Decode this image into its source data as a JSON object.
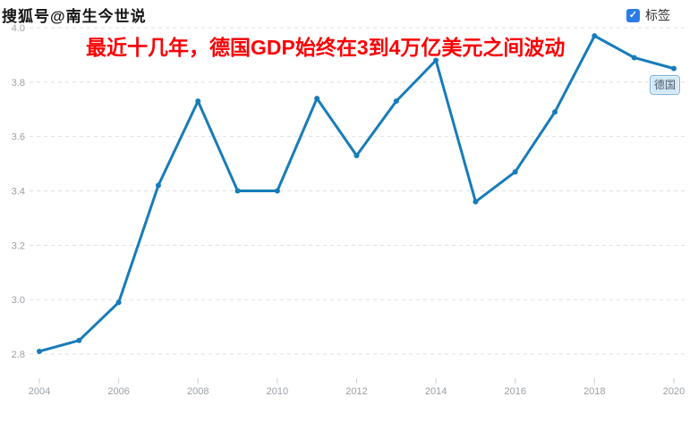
{
  "watermark": {
    "text": "搜狐号@南生今世说"
  },
  "header": {
    "title": "最近十几年，德国GDP始终在3到4万亿美元之间波动"
  },
  "controls": {
    "tag_checkbox": {
      "label": "标签",
      "checked": true
    }
  },
  "series_label": {
    "text": "德国"
  },
  "colors": {
    "title": "#fb0005",
    "line": "#177cb9",
    "grid": "#e0e0e0",
    "axis_text": "#9aa0a6",
    "tick": "#cfcfcf",
    "checkbox": "#2b7ce5",
    "badge_bg": "#d3e9f7",
    "badge_border": "#76b1d8",
    "badge_text": "#4d5a66",
    "watermark": "#151515"
  },
  "chart_data": {
    "type": "line",
    "title": "最近十几年，德国GDP始终在3到4万亿美元之间波动",
    "x": [
      2004,
      2005,
      2006,
      2007,
      2008,
      2009,
      2010,
      2011,
      2012,
      2013,
      2014,
      2015,
      2016,
      2017,
      2018,
      2019,
      2020
    ],
    "series": [
      {
        "name": "德国",
        "values": [
          2.81,
          2.85,
          2.99,
          3.42,
          3.73,
          3.4,
          3.4,
          3.74,
          3.53,
          3.73,
          3.88,
          3.36,
          3.47,
          3.69,
          3.97,
          3.89,
          3.85
        ]
      }
    ],
    "x_tick_labels": [
      "2004",
      "2006",
      "2008",
      "2010",
      "2012",
      "2014",
      "2016",
      "2018",
      "2020"
    ],
    "y_tick_labels": [
      "4.0",
      "3.8",
      "3.6",
      "3.4",
      "3.2",
      "3.0",
      "2.8"
    ],
    "xlim": [
      2004,
      2020
    ],
    "ylim": [
      2.8,
      4.0
    ],
    "xlabel": "",
    "ylabel": "",
    "grid": "horizontal-dashed",
    "legend_position": "none"
  }
}
